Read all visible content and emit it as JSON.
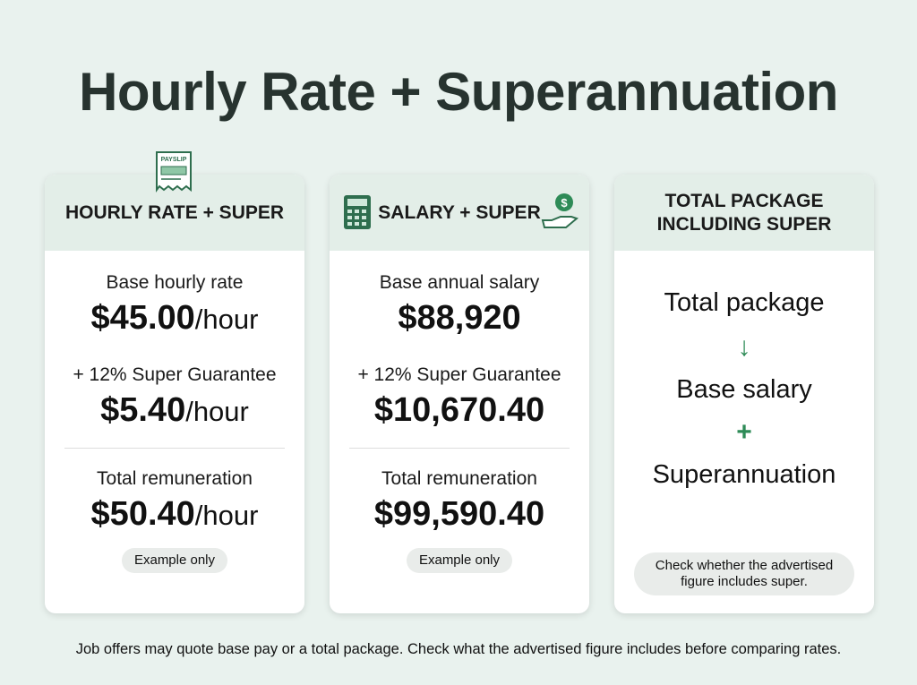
{
  "title": "Hourly Rate + Superannuation",
  "cards": [
    {
      "header": "HOURLY RATE + SUPER",
      "icon_label": "PAYSLIP",
      "base": {
        "label": "Base hourly rate",
        "amount": "$45.00",
        "unit": "/hour"
      },
      "super": {
        "label": "+ 12% Super Guarantee",
        "amount": "$5.40",
        "unit": "/hour"
      },
      "total": {
        "label": "Total remuneration",
        "amount": "$50.40",
        "unit": "/hour"
      },
      "badge": "Example only"
    },
    {
      "header": "SALARY + SUPER",
      "icon_label": "$",
      "base": {
        "label": "Base annual salary",
        "amount": "$88,920"
      },
      "super": {
        "label": "+ 12% Super Guarantee",
        "amount": "$10,670.40"
      },
      "total": {
        "label": "Total remuneration",
        "amount": "$99,590.40"
      },
      "badge": "Example only"
    },
    {
      "header": "TOTAL PACKAGE INCLUDING SUPER",
      "flow": [
        "Total package",
        "↓",
        "Base salary",
        "+",
        "Superannuation"
      ],
      "note": "Check whether the advertised figure includes super."
    }
  ],
  "footer": "Job offers may quote base pay or a total package. Check what the advertised figure includes before comparing rates."
}
